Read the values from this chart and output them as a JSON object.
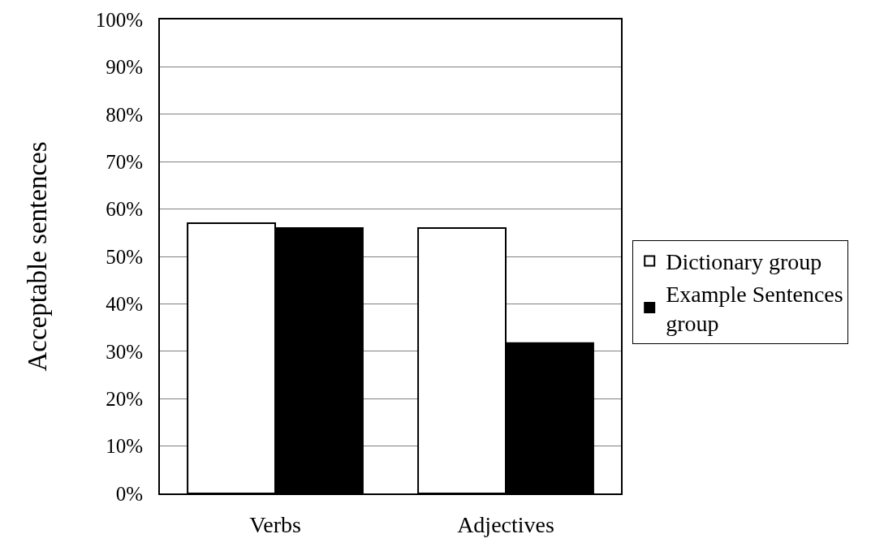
{
  "chart_data": {
    "type": "bar",
    "ylabel": "Acceptable sentences",
    "categories": [
      "Verbs",
      "Adjectives"
    ],
    "series": [
      {
        "name": "Dictionary group",
        "color": "#ffffff",
        "values": [
          57,
          56
        ]
      },
      {
        "name": "Example Sentences group",
        "color": "#000000",
        "values": [
          56,
          31.7
        ]
      }
    ],
    "ylim": [
      0,
      100
    ],
    "yticks": [
      {
        "value": 0,
        "label": "0%"
      },
      {
        "value": 10,
        "label": "10%"
      },
      {
        "value": 20,
        "label": "20%"
      },
      {
        "value": 30,
        "label": "30%"
      },
      {
        "value": 40,
        "label": "40%"
      },
      {
        "value": 50,
        "label": "50%"
      },
      {
        "value": 60,
        "label": "60%"
      },
      {
        "value": 70,
        "label": "70%"
      },
      {
        "value": 80,
        "label": "80%"
      },
      {
        "value": 90,
        "label": "90%"
      },
      {
        "value": 100,
        "label": "100%"
      }
    ],
    "grid": "y",
    "legend": "right"
  }
}
